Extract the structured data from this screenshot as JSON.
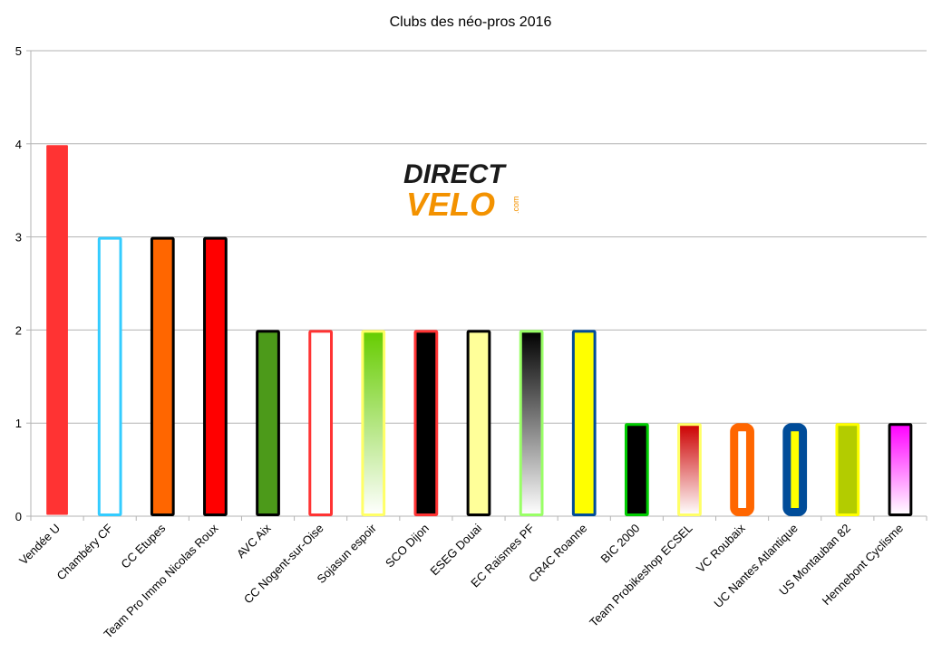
{
  "logo": {
    "line1": "DIRECT",
    "line2": "VELO",
    "suffix": ".com",
    "line2_color": "#f39200"
  },
  "chart_data": {
    "type": "bar",
    "title": "Clubs des néo-pros 2016",
    "xlabel": "",
    "ylabel": "",
    "ylim": [
      0,
      5
    ],
    "yticks": [
      0,
      1,
      2,
      3,
      4,
      5
    ],
    "grid": true,
    "legend": "none",
    "categories": [
      "Vendée U",
      "Chambéry CF",
      "CC Etupes",
      "Team Pro Immo Nicolas Roux",
      "AVC Aix",
      "CC Nogent-sur-Oise",
      "Sojasun espoir",
      "SCO Dijon",
      "ESEG Douai",
      "EC Raismes PF",
      "CR4C Roanne",
      "BIC 2000",
      "Team Probikeshop ECSEL",
      "VC Roubaix",
      "UC Nantes Atlantique",
      "US Montauban 82",
      "Hennebont Cyclisme"
    ],
    "series": [
      {
        "values": [
          4,
          3,
          3,
          3,
          2,
          2,
          2,
          2,
          2,
          2,
          2,
          1,
          1,
          1,
          1,
          1,
          1
        ]
      }
    ],
    "bar_styles": [
      {
        "fill": "#ff3333",
        "border": "#ff3333"
      },
      {
        "fill": "#ffffff",
        "border": "#33ccff"
      },
      {
        "fill": "#ff6600",
        "border": "#000000"
      },
      {
        "fill": "#ff0000",
        "border": "#000000"
      },
      {
        "fill": "#4c9a1a",
        "border": "#000000"
      },
      {
        "fill": "#ffffff",
        "border": "#ff3333"
      },
      {
        "fill": "gradient",
        "grad_top": "#66cc00",
        "grad_bottom": "#ffffff",
        "border": "#ffff66"
      },
      {
        "fill": "#000000",
        "border": "#ff3333"
      },
      {
        "fill": "#ffff99",
        "border": "#000000"
      },
      {
        "fill": "gradient",
        "grad_top": "#000000",
        "grad_bottom": "#ffffff",
        "border": "#99ff66"
      },
      {
        "fill": "#ffff00",
        "border": "#004c99"
      },
      {
        "fill": "#000000",
        "border": "#00cc00"
      },
      {
        "fill": "gradient",
        "grad_top": "#cc0000",
        "grad_bottom": "#ffffff",
        "border": "#ffff66"
      },
      {
        "fill": "#ffffff",
        "border": "#ff6600",
        "thick": true
      },
      {
        "fill": "#ffff00",
        "border": "#004c99",
        "thick": true
      },
      {
        "fill": "#b3cc00",
        "border": "#ffff00"
      },
      {
        "fill": "gradient",
        "grad_top": "#ff00ff",
        "grad_bottom": "#ffffff",
        "border": "#000000"
      }
    ]
  }
}
